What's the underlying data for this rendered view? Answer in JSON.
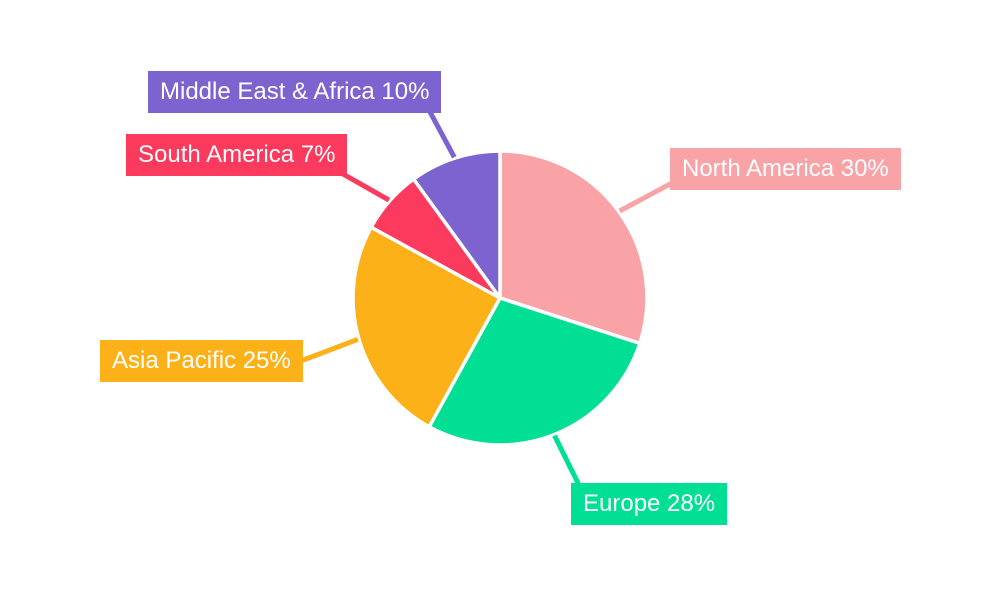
{
  "page": {
    "background": "#FFFFFF"
  },
  "chart_data": {
    "type": "pie",
    "title": "",
    "labels": [
      "North America",
      "Europe",
      "Asia Pacific",
      "South America",
      "Middle East & Africa"
    ],
    "values": [
      30,
      28,
      25,
      7,
      10
    ],
    "unit": "%",
    "colors": [
      "#F9A3A6",
      "#00DF94",
      "#FBB117",
      "#FB3A5D",
      "#7C63CF"
    ],
    "callout_labels": [
      "North America 30%",
      "Europe 28%",
      "Asia Pacific 25%",
      "South America 7%",
      "Middle East & Africa 10%"
    ],
    "slice_ids": [
      "north-america",
      "europe",
      "asia-pacific",
      "south-america",
      "middle-east-africa"
    ],
    "label_text_color": "#FFFFFF",
    "slice_gap_color": "#FFFFFF",
    "start_angle_deg": 0,
    "direction": "clockwise",
    "legend": "none",
    "label_style": "callout-boxes-with-leader-lines"
  }
}
